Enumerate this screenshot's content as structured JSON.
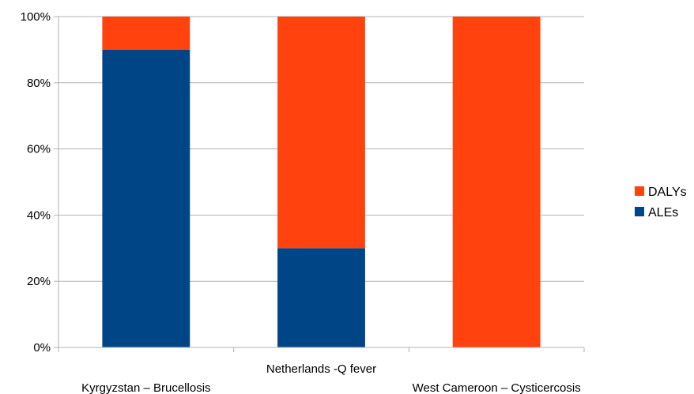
{
  "chart_data": {
    "type": "bar",
    "stacked": true,
    "percent_stacked": true,
    "categories": [
      "Kyrgyzstan – Brucellosis",
      "Netherlands -Q fever",
      "West Cameroon – Cysticercosis"
    ],
    "series": [
      {
        "name": "ALEs",
        "values": [
          90,
          30,
          0
        ],
        "color": "#004586"
      },
      {
        "name": "DALYs",
        "values": [
          10,
          70,
          100
        ],
        "color": "#ff420e"
      }
    ],
    "y_ticks": [
      "0%",
      "20%",
      "40%",
      "60%",
      "80%",
      "100%"
    ],
    "ylim": [
      0,
      100
    ],
    "grid": true,
    "legend_position": "right"
  }
}
